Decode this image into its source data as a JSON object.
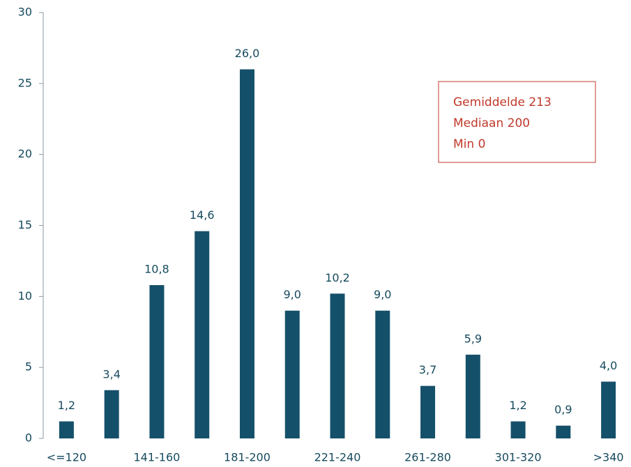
{
  "chart_data": {
    "type": "bar",
    "categories": [
      "<=120",
      null,
      "141-160",
      null,
      "181-200",
      null,
      "221-240",
      null,
      "261-280",
      null,
      "301-320",
      null,
      ">340"
    ],
    "values": [
      1.2,
      3.4,
      10.8,
      14.6,
      26.0,
      9.0,
      10.2,
      9.0,
      3.7,
      5.9,
      1.2,
      0.9,
      4.0
    ],
    "value_labels": [
      "1,2",
      "3,4",
      "10,8",
      "14,6",
      "26,0",
      "9,0",
      "10,2",
      "9,0",
      "3,7",
      "5,9",
      "1,2",
      "0,9",
      "4,0"
    ],
    "color": "#15506a",
    "ylim": [
      0,
      30
    ],
    "yticks": [
      0,
      5,
      10,
      15,
      20,
      25,
      30
    ],
    "grid": false,
    "annotations": [
      "Gemiddelde 213",
      "Mediaan 200",
      "Min 0"
    ]
  }
}
